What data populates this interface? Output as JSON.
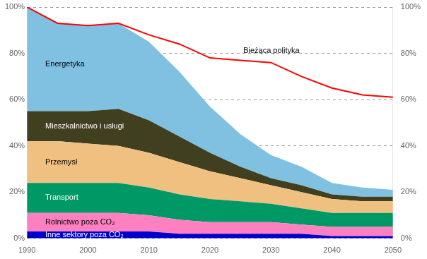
{
  "chart_data": {
    "type": "area",
    "stacked": true,
    "grid": true,
    "x": [
      1990,
      1995,
      2000,
      2005,
      2010,
      2015,
      2020,
      2025,
      2030,
      2035,
      2040,
      2045,
      2050
    ],
    "series": [
      {
        "name": "Inne sektory poza CO₂",
        "color": "#0000cc",
        "values": [
          3,
          3,
          3,
          3,
          3,
          2,
          2,
          2,
          2,
          2,
          1,
          1,
          1
        ]
      },
      {
        "name": "Rolnictwo poza CO₂",
        "color": "#ff80c0",
        "values": [
          8,
          8,
          8,
          8,
          7,
          6,
          5,
          5,
          5,
          4,
          4,
          4,
          4
        ]
      },
      {
        "name": "Transport",
        "color": "#009966",
        "values": [
          13,
          13,
          13,
          13,
          12,
          11,
          10,
          9,
          8,
          7,
          6,
          6,
          6
        ]
      },
      {
        "name": "Przemysł",
        "color": "#f0c080",
        "values": [
          18,
          18,
          17,
          16,
          15,
          14,
          12,
          10,
          8,
          7,
          6,
          5,
          5
        ]
      },
      {
        "name": "Mieszkalnictwo i usługi",
        "color": "#404020",
        "values": [
          13,
          13,
          14,
          16,
          14,
          11,
          8,
          5,
          3,
          3,
          2,
          2,
          2
        ]
      },
      {
        "name": "Energetyka",
        "color": "#80c0e0",
        "values": [
          45,
          38,
          37,
          37,
          34,
          28,
          20,
          14,
          10,
          8,
          5,
          4,
          3
        ]
      },
      {
        "name": "Bieżąca polityka",
        "type": "line",
        "color": "red",
        "values": [
          100,
          93,
          92,
          93,
          88,
          84,
          78,
          77,
          76,
          70,
          65,
          62,
          61
        ]
      }
    ],
    "xlim": [
      1990,
      2050
    ],
    "xticks": [
      1990,
      2000,
      2010,
      2020,
      2030,
      2040,
      2050
    ],
    "ylim": [
      0,
      100
    ],
    "yticks": [
      {
        "value": 0,
        "label": "0%"
      },
      {
        "value": 20,
        "label": "20%"
      },
      {
        "value": 40,
        "label": "40%"
      },
      {
        "value": 60,
        "label": "60%"
      },
      {
        "value": 80,
        "label": "80%"
      },
      {
        "value": 100,
        "label": "100%"
      }
    ],
    "y2lim": [
      0,
      100
    ],
    "y2ticks": [
      {
        "value": 0,
        "label": "0%"
      },
      {
        "value": 20,
        "label": "20%"
      },
      {
        "value": 40,
        "label": "40%"
      },
      {
        "value": 60,
        "label": "60%"
      },
      {
        "value": 80,
        "label": "80%"
      },
      {
        "value": 100,
        "label": "100%"
      }
    ]
  }
}
